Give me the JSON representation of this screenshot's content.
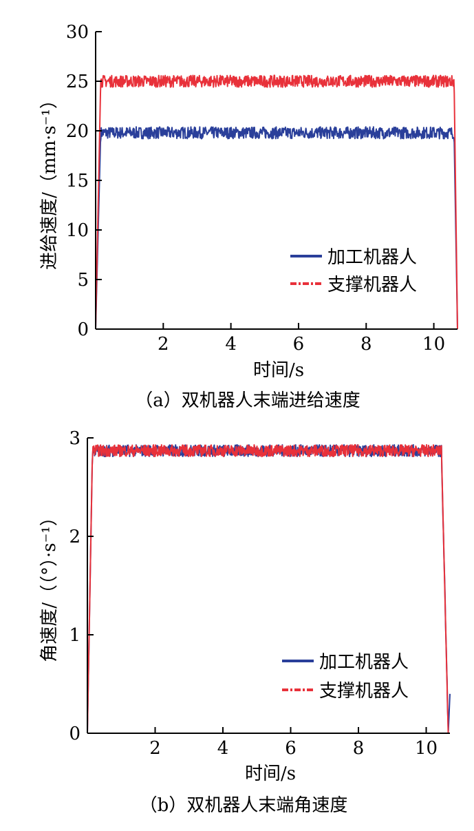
{
  "chart_data": [
    {
      "type": "line",
      "xlabel": "时间/s",
      "ylabel": "进给速度/（mm·s⁻¹）",
      "caption": "（a）双机器人末端进给速度",
      "xlim": [
        0,
        10.7
      ],
      "ylim": [
        0,
        30
      ],
      "xticks": [
        2,
        4,
        6,
        8,
        10
      ],
      "yticks": [
        0,
        5,
        10,
        15,
        20,
        25,
        30
      ],
      "legend_position": "bottom-right",
      "grid": false,
      "series": [
        {
          "name": "加工机器人",
          "color": "#2a3f9a",
          "style": "solid",
          "points": [
            [
              0,
              0
            ],
            [
              0.15,
              19.8
            ],
            [
              10.6,
              19.8
            ],
            [
              10.7,
              0
            ]
          ],
          "noise": 0.6
        },
        {
          "name": "支撑机器人",
          "color": "#e8313a",
          "style": "dashdot",
          "points": [
            [
              0,
              0
            ],
            [
              0.15,
              25.0
            ],
            [
              10.6,
              25.0
            ],
            [
              10.7,
              0
            ]
          ],
          "noise": 0.6
        }
      ]
    },
    {
      "type": "line",
      "xlabel": "时间/s",
      "ylabel": "角速度/（（°）·s⁻¹）",
      "caption": "（b）双机器人末端角速度",
      "xlim": [
        0,
        10.7
      ],
      "ylim": [
        0,
        3
      ],
      "xticks": [
        2,
        4,
        6,
        8,
        10
      ],
      "yticks": [
        0,
        1,
        2,
        3
      ],
      "legend_position": "bottom-right",
      "grid": false,
      "series": [
        {
          "name": "加工机器人",
          "color": "#2a3f9a",
          "style": "solid",
          "points": [
            [
              0,
              0
            ],
            [
              0.15,
              2.87
            ],
            [
              10.45,
              2.87
            ],
            [
              10.65,
              0
            ],
            [
              10.7,
              0.4
            ]
          ],
          "noise": 0.06
        },
        {
          "name": "支撑机器人",
          "color": "#e8313a",
          "style": "dashdot",
          "points": [
            [
              0,
              0
            ],
            [
              0.15,
              2.87
            ],
            [
              10.45,
              2.87
            ],
            [
              10.65,
              0
            ]
          ],
          "noise": 0.06
        }
      ]
    }
  ]
}
